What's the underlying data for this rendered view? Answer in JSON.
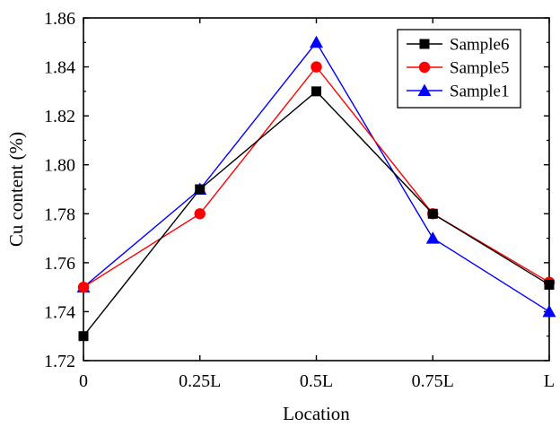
{
  "chart_data": {
    "type": "line",
    "title": "",
    "xlabel": "Location",
    "ylabel": "Cu content (%)",
    "categories": [
      "0",
      "0.25L",
      "0.5L",
      "0.75L",
      "L"
    ],
    "ylim": [
      1.72,
      1.86
    ],
    "yticks": [
      "1.72",
      "1.74",
      "1.76",
      "1.78",
      "1.80",
      "1.82",
      "1.84",
      "1.86"
    ],
    "grid": false,
    "legend_position": "top-right",
    "series": [
      {
        "name": "Sample6",
        "color": "#000000",
        "marker": "square",
        "values": [
          1.73,
          1.79,
          1.83,
          1.78,
          1.751
        ]
      },
      {
        "name": "Sample5",
        "color": "#ff0000",
        "marker": "circle",
        "values": [
          1.75,
          1.78,
          1.84,
          1.78,
          1.752
        ]
      },
      {
        "name": "Sample1",
        "color": "#0000ff",
        "marker": "triangle",
        "values": [
          1.75,
          1.79,
          1.85,
          1.77,
          1.74
        ]
      }
    ]
  }
}
